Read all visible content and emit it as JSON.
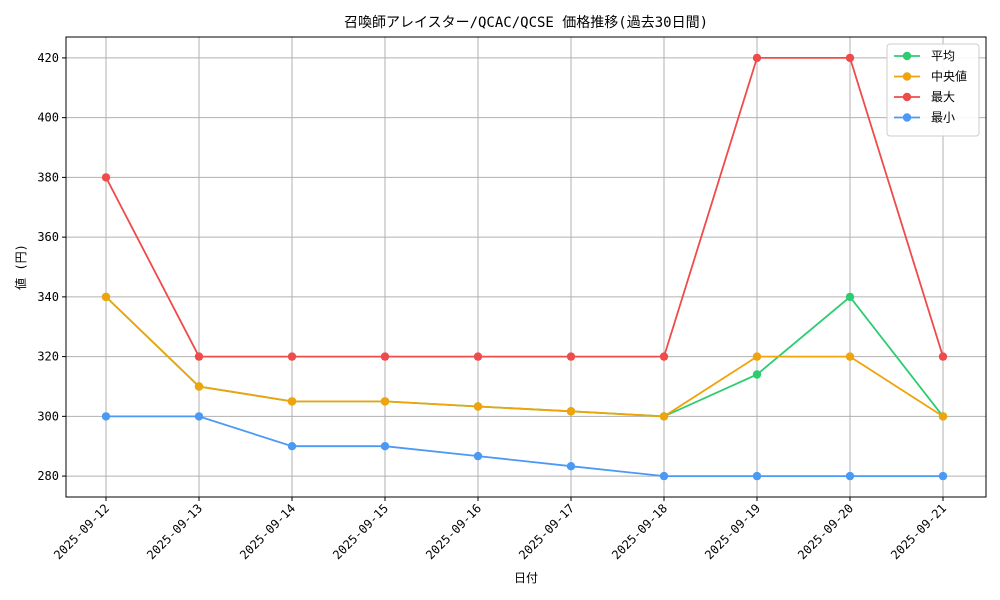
{
  "chart_data": {
    "type": "line",
    "title": "召喚師アレイスター/QCAC/QCSE 価格推移(過去30日間)",
    "xlabel": "日付",
    "ylabel": "値 (円)",
    "categories": [
      "2025-09-12",
      "2025-09-13",
      "2025-09-14",
      "2025-09-15",
      "2025-09-16",
      "2025-09-17",
      "2025-09-18",
      "2025-09-19",
      "2025-09-20",
      "2025-09-21"
    ],
    "ylim": [
      273,
      427
    ],
    "yticks": [
      280,
      300,
      320,
      340,
      360,
      380,
      400,
      420
    ],
    "grid": true,
    "legend_position": "top-right",
    "series": [
      {
        "name": "平均",
        "color": "#2ecc71",
        "values": [
          340,
          310,
          305,
          305,
          303.3,
          301.7,
          300,
          314,
          340,
          300
        ]
      },
      {
        "name": "中央値",
        "color": "#f0a30a",
        "values": [
          340,
          310,
          305,
          305,
          303.3,
          301.7,
          300,
          320,
          320,
          300
        ]
      },
      {
        "name": "最大",
        "color": "#ef4b4b",
        "values": [
          380,
          320,
          320,
          320,
          320,
          320,
          320,
          420,
          420,
          320
        ]
      },
      {
        "name": "最小",
        "color": "#4a9af5",
        "values": [
          300,
          300,
          290,
          290,
          286.7,
          283.3,
          280,
          280,
          280,
          280
        ]
      }
    ]
  }
}
